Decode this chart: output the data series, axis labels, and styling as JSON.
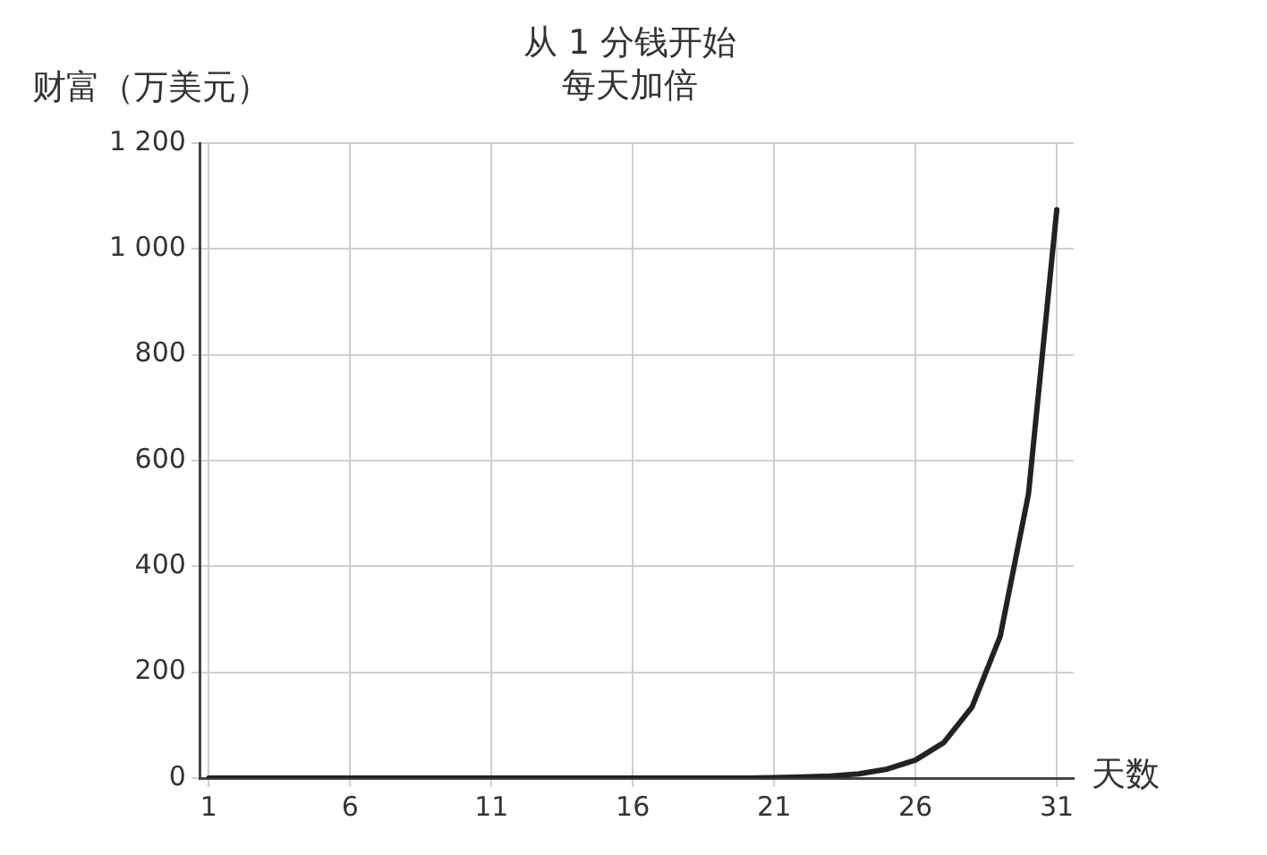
{
  "chart_data": {
    "type": "line",
    "title": "从 1 分钱开始每天加倍",
    "xlabel": "天数",
    "ylabel": "财富（万美元）",
    "x": [
      1,
      2,
      3,
      4,
      5,
      6,
      7,
      8,
      9,
      10,
      11,
      12,
      13,
      14,
      15,
      16,
      17,
      18,
      19,
      20,
      21,
      22,
      23,
      24,
      25,
      26,
      27,
      28,
      29,
      30,
      31
    ],
    "series": [
      {
        "color": "#222222",
        "values": [
          0,
          0,
          0,
          0,
          0,
          0,
          0,
          0,
          0,
          0,
          0,
          0,
          0,
          0,
          0,
          0,
          0,
          0,
          0,
          0,
          1,
          2,
          4,
          8,
          17,
          34,
          67,
          134,
          268,
          537,
          1074
        ]
      }
    ],
    "xlim": [
      0.7,
      31.6
    ],
    "xticks": [
      1,
      6,
      11,
      16,
      21,
      26,
      31
    ],
    "ylim": [
      0,
      1200
    ],
    "yticks": [
      0,
      200,
      400,
      600,
      800,
      {
        "value": 1000,
        "label": "1 000"
      },
      {
        "value": 1200,
        "label": "1 200"
      }
    ],
    "grid": true,
    "legend": false,
    "marker": "none",
    "line_style": "solid"
  }
}
